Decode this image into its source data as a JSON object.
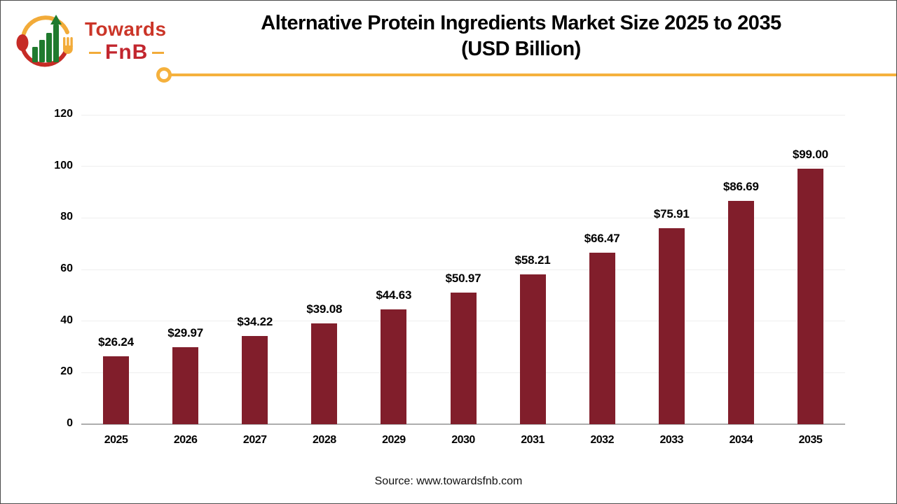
{
  "logo": {
    "line1": "Towards",
    "line2": "FnB"
  },
  "header": {
    "title_line1": "Alternative Protein Ingredients Market Size 2025 to 2035",
    "title_line2": "(USD Billion)"
  },
  "footer": {
    "source": "Source: www.towardsfnb.com"
  },
  "colors": {
    "bar": "#811e2b",
    "accent_yellow": "#f5b13d",
    "logo_red": "#c5302c",
    "logo_green": "#1f7a2e",
    "gridline": "#efefef",
    "axis_line": "#adadad"
  },
  "chart_data": {
    "type": "bar",
    "title": "Alternative Protein Ingredients Market Size 2025 to 2035 (USD Billion)",
    "categories": [
      "2025",
      "2026",
      "2027",
      "2028",
      "2029",
      "2030",
      "2031",
      "2032",
      "2033",
      "2034",
      "2035"
    ],
    "values": [
      26.24,
      29.97,
      34.22,
      39.08,
      44.63,
      50.97,
      58.21,
      66.47,
      75.91,
      86.69,
      99.0
    ],
    "data_labels": [
      "$26.24",
      "$29.97",
      "$34.22",
      "$39.08",
      "$44.63",
      "$50.97",
      "$58.21",
      "$66.47",
      "$75.91",
      "$86.69",
      "$99.00"
    ],
    "xlabel": "",
    "ylabel": "",
    "ylim": [
      0,
      120
    ],
    "yticks": [
      0,
      20,
      40,
      60,
      80,
      100,
      120
    ],
    "grid": true,
    "legend": "none"
  }
}
